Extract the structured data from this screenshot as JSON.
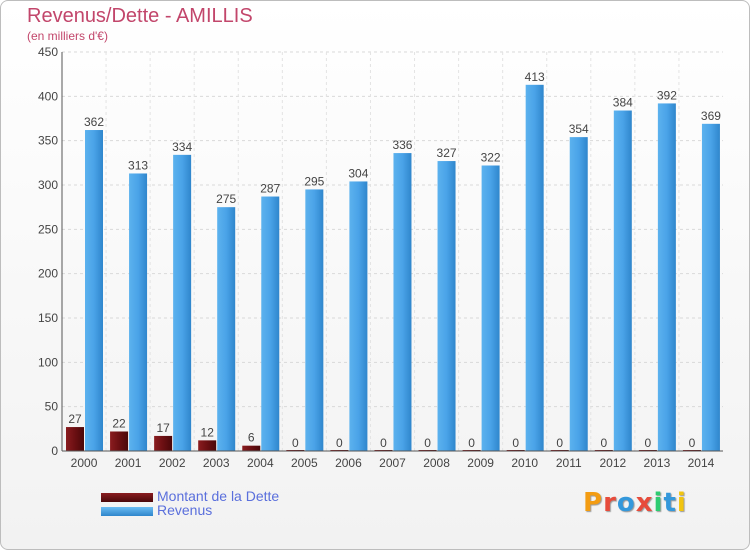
{
  "header": {
    "title": "Revenus/Dette - AMILLIS",
    "subtitle": "(en milliers d'€)"
  },
  "legend": {
    "dette_label": "Montant de la Dette",
    "revenus_label": "Revenus"
  },
  "logo": {
    "text": "Proxiti"
  },
  "colors": {
    "dette": "#6b0f12",
    "revenus": "#4aa3e8",
    "title": "#c2466b",
    "legend_text": "#5a6fdc"
  },
  "chart_data": {
    "type": "bar",
    "title": "Revenus/Dette - AMILLIS",
    "subtitle": "(en milliers d'€)",
    "categories": [
      "2000",
      "2001",
      "2002",
      "2003",
      "2004",
      "2005",
      "2006",
      "2007",
      "2008",
      "2009",
      "2010",
      "2011",
      "2012",
      "2013",
      "2014"
    ],
    "series": [
      {
        "name": "Montant de la Dette",
        "values": [
          27,
          22,
          17,
          12,
          6,
          0,
          0,
          0,
          0,
          0,
          0,
          0,
          0,
          0,
          0
        ]
      },
      {
        "name": "Revenus",
        "values": [
          362,
          313,
          334,
          275,
          287,
          295,
          304,
          336,
          327,
          322,
          413,
          354,
          384,
          392,
          369
        ]
      }
    ],
    "ylim": [
      0,
      450
    ],
    "yticks": [
      0,
      50,
      100,
      150,
      200,
      250,
      300,
      350,
      400,
      450
    ],
    "grid": true,
    "legend_position": "bottom-left"
  }
}
